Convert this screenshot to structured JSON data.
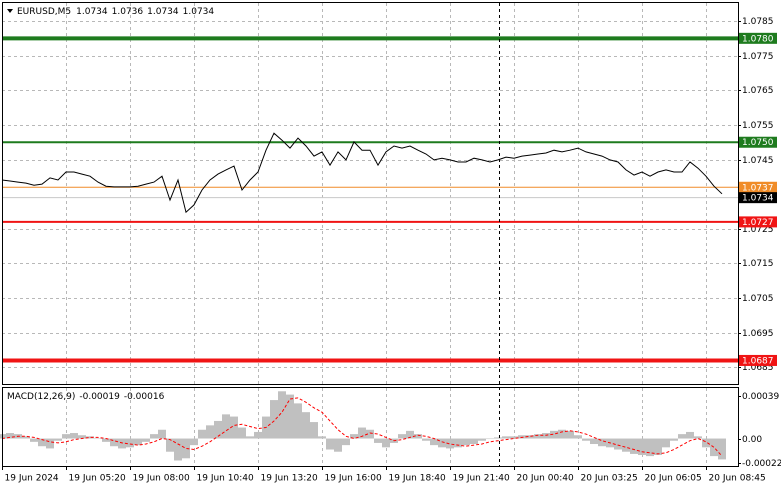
{
  "chart_data": [
    {
      "type": "line",
      "title": "EURUSD,M5",
      "ohlc": [
        1.0734,
        1.0736,
        1.0734,
        1.0734
      ],
      "series": [
        {
          "color": "#000000",
          "values": [
            1.07391,
            1.07388,
            1.07385,
            1.07382,
            1.07376,
            1.07379,
            1.07397,
            1.07391,
            1.07414,
            1.07414,
            1.07408,
            1.07402,
            1.07385,
            1.07373,
            1.07371,
            1.07371,
            1.07371,
            1.07373,
            1.07379,
            1.07385,
            1.07402,
            1.07333,
            1.07391,
            1.07298,
            1.07319,
            1.07362,
            1.07391,
            1.07408,
            1.0742,
            1.07431,
            1.07362,
            1.07391,
            1.07414,
            1.07477,
            1.07526,
            1.07506,
            1.07483,
            1.07512,
            1.07489,
            1.0746,
            1.07472,
            1.07434,
            1.07472,
            1.07449,
            1.07501,
            1.07477,
            1.07477,
            1.07434,
            1.07472,
            1.07489,
            1.07483,
            1.07489,
            1.07477,
            1.07466,
            1.07449,
            1.07454,
            1.07449,
            1.07443,
            1.07443,
            1.07454,
            1.07449,
            1.07443,
            1.07449,
            1.07457,
            1.07454,
            1.0746,
            1.07463,
            1.07466,
            1.07469,
            1.07477,
            1.07472,
            1.07477,
            1.07483,
            1.07472,
            1.07466,
            1.0746,
            1.07449,
            1.07443,
            1.0742,
            1.07405,
            1.07414,
            1.07402,
            1.07414,
            1.0742,
            1.07414,
            1.07414,
            1.07443,
            1.07425,
            1.07402,
            1.07373,
            1.07351
          ]
        }
      ],
      "ylim": [
        1.06802,
        1.07902
      ],
      "yticks": [
        1.0785,
        1.0775,
        1.0765,
        1.0755,
        1.0745,
        1.0725,
        1.0715,
        1.0705,
        1.0695,
        1.0685
      ],
      "xlim": [
        0,
        92
      ],
      "xticks": [
        {
          "value": 0,
          "label": "19 Jun 2024"
        },
        {
          "value": 8,
          "label": "19 Jun 05:20"
        },
        {
          "value": 16,
          "label": "19 Jun 08:00"
        },
        {
          "value": 24,
          "label": "19 Jun 10:40"
        },
        {
          "value": 32,
          "label": "19 Jun 13:20"
        },
        {
          "value": 40,
          "label": "19 Jun 16:00"
        },
        {
          "value": 48,
          "label": "19 Jun 18:40"
        },
        {
          "value": 56,
          "label": "19 Jun 21:40"
        },
        {
          "value": 64,
          "label": "20 Jun 00:40"
        },
        {
          "value": 72,
          "label": "20 Jun 03:25"
        },
        {
          "value": 80,
          "label": "20 Jun 06:05"
        },
        {
          "value": 88,
          "label": "20 Jun 08:45"
        }
      ],
      "levels": [
        {
          "value": 1.078,
          "label": "1.0780",
          "color": "#1e7b1e"
        },
        {
          "value": 1.075,
          "label": "1.0750",
          "color": "#1e7b1e"
        },
        {
          "value": 1.0737,
          "color": "#f08c28"
        },
        {
          "value": 1.0734,
          "color": "#000000"
        },
        {
          "value": 1.0727,
          "color": "#f01414"
        },
        {
          "value": 1.0687,
          "color": "#f01414"
        }
      ],
      "grid": true
    },
    {
      "type": "macd",
      "title": "MACD(12,26,9)",
      "readings": [
        -0.00019,
        -0.00016
      ],
      "series": [
        {
          "type": "histogram",
          "color": "#c0c0c0",
          "values": [
            4e-05,
            5e-05,
            4e-05,
            2e-05,
            -3e-05,
            -7e-05,
            -9e-05,
            -2e-05,
            4e-05,
            5e-05,
            3e-05,
            2e-05,
            0,
            -3e-05,
            -7e-05,
            -9e-05,
            -8e-05,
            -6e-05,
            -3e-05,
            4e-05,
            8e-05,
            -0.00012,
            -0.0002,
            -0.00018,
            -6e-05,
            8e-05,
            0.00012,
            0.00016,
            0.00022,
            0.0002,
            0.0001,
            2e-05,
            6e-05,
            0.0002,
            0.00035,
            0.00043,
            0.0004,
            0.00032,
            0.00024,
            0.00015,
            2e-05,
            -0.0001,
            -0.00012,
            -6e-05,
            4e-05,
            0.0001,
            8e-05,
            -4e-05,
            -8e-05,
            -4e-05,
            4e-05,
            7e-05,
            4e-05,
            -2e-05,
            -6e-05,
            -8e-05,
            -9e-05,
            -8e-05,
            -6e-05,
            -5e-05,
            -2e-05,
            0,
            1e-05,
            2e-05,
            2e-05,
            3e-05,
            3e-05,
            4e-05,
            5e-05,
            7e-05,
            8e-05,
            7e-05,
            3e-05,
            -2e-05,
            -5e-05,
            -7e-05,
            -8e-05,
            -0.0001,
            -0.00012,
            -0.00014,
            -0.00015,
            -0.00016,
            -0.00015,
            -8e-05,
            -2e-05,
            4e-05,
            6e-05,
            2e-05,
            -8e-05,
            -0.00016,
            -0.00019
          ]
        },
        {
          "type": "line",
          "color": "#ff0000",
          "values": [
            0,
            1e-05,
            2e-05,
            2e-05,
            1e-05,
            -1e-05,
            -3e-05,
            -4e-05,
            -3e-05,
            -1e-05,
            0,
            1e-05,
            1e-05,
            0,
            -2e-05,
            -4e-05,
            -5e-05,
            -6e-05,
            -5e-05,
            -3e-05,
            0,
            -1e-05,
            -5e-05,
            -9e-05,
            -0.0001,
            -7e-05,
            -3e-05,
            2e-05,
            7e-05,
            0.00012,
            0.00013,
            0.00011,
            9e-05,
            0.0001,
            0.00016,
            0.00024,
            0.00036,
            0.00037,
            0.00033,
            0.00028,
            0.00024,
            0.00016,
            8e-05,
            2e-05,
            0,
            2e-05,
            5e-05,
            4e-05,
            1e-05,
            -2e-05,
            -1e-05,
            1e-05,
            3e-05,
            2e-05,
            0,
            -3e-05,
            -5e-05,
            -6e-05,
            -7e-05,
            -6e-05,
            -5e-05,
            -3e-05,
            -2e-05,
            -1e-05,
            0,
            1e-05,
            2e-05,
            3e-05,
            3e-05,
            4e-05,
            6e-05,
            7e-05,
            6e-05,
            4e-05,
            1e-05,
            -2e-05,
            -4e-05,
            -6e-05,
            -8e-05,
            -0.0001,
            -0.00012,
            -0.00013,
            -0.00014,
            -0.00013,
            -0.0001,
            -6e-05,
            -2e-05,
            0,
            -3e-05,
            -8e-05,
            -0.00016
          ]
        }
      ],
      "ylim": [
        -0.00025,
        0.00046
      ],
      "yticks": [
        0.00039,
        {
          "value": 0,
          "label": "0.00"
        },
        -0.00022
      ]
    }
  ]
}
